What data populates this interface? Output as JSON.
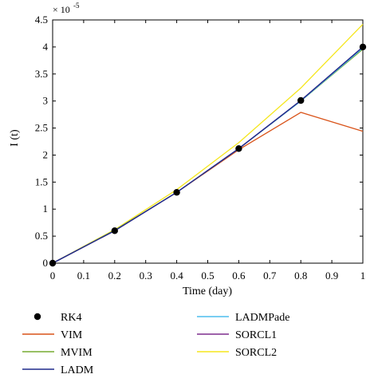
{
  "chart_data": {
    "type": "line",
    "xlabel": "Time (day)",
    "ylabel": "I (t)",
    "exponent_base": "× 10",
    "exponent_power": "-5",
    "xlim": [
      0,
      1
    ],
    "ylim": [
      0,
      4.5
    ],
    "xticks": [
      0,
      0.1,
      0.2,
      0.3,
      0.4,
      0.5,
      0.6,
      0.7,
      0.8,
      0.9,
      1
    ],
    "xtick_labels": [
      "0",
      "0.1",
      "0.2",
      "0.3",
      "0.4",
      "0.5",
      "0.6",
      "0.7",
      "0.8",
      "0.9",
      "1"
    ],
    "yticks": [
      0,
      0.5,
      1,
      1.5,
      2,
      2.5,
      3,
      3.5,
      4,
      4.5
    ],
    "ytick_labels": [
      "0",
      "0.5",
      "1",
      "1.5",
      "2",
      "2.5",
      "3",
      "3.5",
      "4",
      "4.5"
    ],
    "grid": false,
    "legend_position": "bottom",
    "series": [
      {
        "name": "RK4",
        "style": "markers",
        "color": "#000000",
        "x": [
          0,
          0.2,
          0.4,
          0.6,
          0.8,
          1.0
        ],
        "y": [
          0,
          0.6,
          1.31,
          2.12,
          3.01,
          4.0
        ]
      },
      {
        "name": "VIM",
        "style": "line",
        "color": "#d95319",
        "x": [
          0,
          0.2,
          0.4,
          0.6,
          0.8,
          1.0
        ],
        "y": [
          0,
          0.6,
          1.31,
          2.1,
          2.79,
          2.44
        ]
      },
      {
        "name": "MVIM",
        "style": "line",
        "color": "#77ac30",
        "x": [
          0,
          0.2,
          0.4,
          0.6,
          0.8,
          1.0
        ],
        "y": [
          0,
          0.61,
          1.31,
          2.12,
          3.0,
          3.96
        ]
      },
      {
        "name": "LADM",
        "style": "line",
        "color": "#1f2a8c",
        "x": [
          0,
          0.2,
          0.4,
          0.6,
          0.8,
          1.0
        ],
        "y": [
          0,
          0.6,
          1.31,
          2.12,
          3.01,
          4.0
        ]
      },
      {
        "name": "LADMPade",
        "style": "line",
        "color": "#4dbeee",
        "x": [
          0,
          0.2,
          0.4,
          0.6,
          0.8,
          1.0
        ],
        "y": [
          0,
          0.6,
          1.31,
          2.12,
          3.0,
          3.98
        ]
      },
      {
        "name": "SORCL1",
        "style": "line",
        "color": "#7e2f8e",
        "x": [
          0,
          0.2,
          0.4,
          0.6,
          0.8,
          1.0
        ],
        "y": [
          0,
          0.6,
          1.31,
          2.12,
          3.01,
          4.0
        ]
      },
      {
        "name": "SORCL2",
        "style": "line",
        "color": "#f5e61c",
        "x": [
          0,
          0.2,
          0.4,
          0.6,
          0.8,
          1.0
        ],
        "y": [
          0,
          0.62,
          1.36,
          2.23,
          3.24,
          4.42
        ]
      }
    ]
  }
}
